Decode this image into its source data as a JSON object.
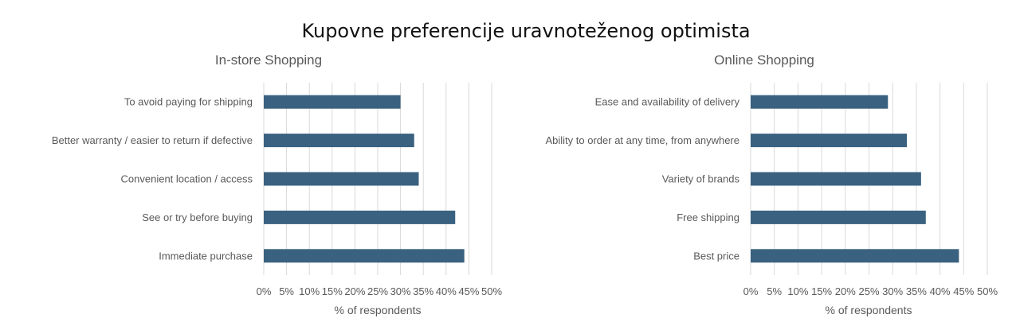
{
  "title": "Kupovne preferencije uravnoteženog optimista",
  "colors": {
    "bar": "#3a6280",
    "grid": "#d9d9d9",
    "text": "#595959",
    "title": "#111111"
  },
  "chart_data": [
    {
      "type": "bar",
      "orientation": "horizontal",
      "title": "In-store Shopping",
      "xlabel": "% of respondents",
      "ylabel": "",
      "xlim": [
        0,
        50
      ],
      "ticks": [
        "0%",
        "5%",
        "10%",
        "15%",
        "20%",
        "25%",
        "30%",
        "35%",
        "40%",
        "45%",
        "50%"
      ],
      "grid": true,
      "legend": "none",
      "categories": [
        "To avoid paying for shipping",
        "Better warranty / easier to return if defective",
        "Convenient location / access",
        "See or try before buying",
        "Immediate purchase"
      ],
      "values": [
        30,
        33,
        34,
        42,
        44
      ]
    },
    {
      "type": "bar",
      "orientation": "horizontal",
      "title": "Online Shopping",
      "xlabel": "% of respondents",
      "ylabel": "",
      "xlim": [
        0,
        50
      ],
      "ticks": [
        "0%",
        "5%",
        "10%",
        "15%",
        "20%",
        "25%",
        "30%",
        "35%",
        "40%",
        "45%",
        "50%"
      ],
      "grid": true,
      "legend": "none",
      "categories": [
        "Ease and availability of delivery",
        "Ability to order at any time, from anywhere",
        "Variety of brands",
        "Free shipping",
        "Best price"
      ],
      "values": [
        29,
        33,
        36,
        37,
        44
      ]
    }
  ]
}
